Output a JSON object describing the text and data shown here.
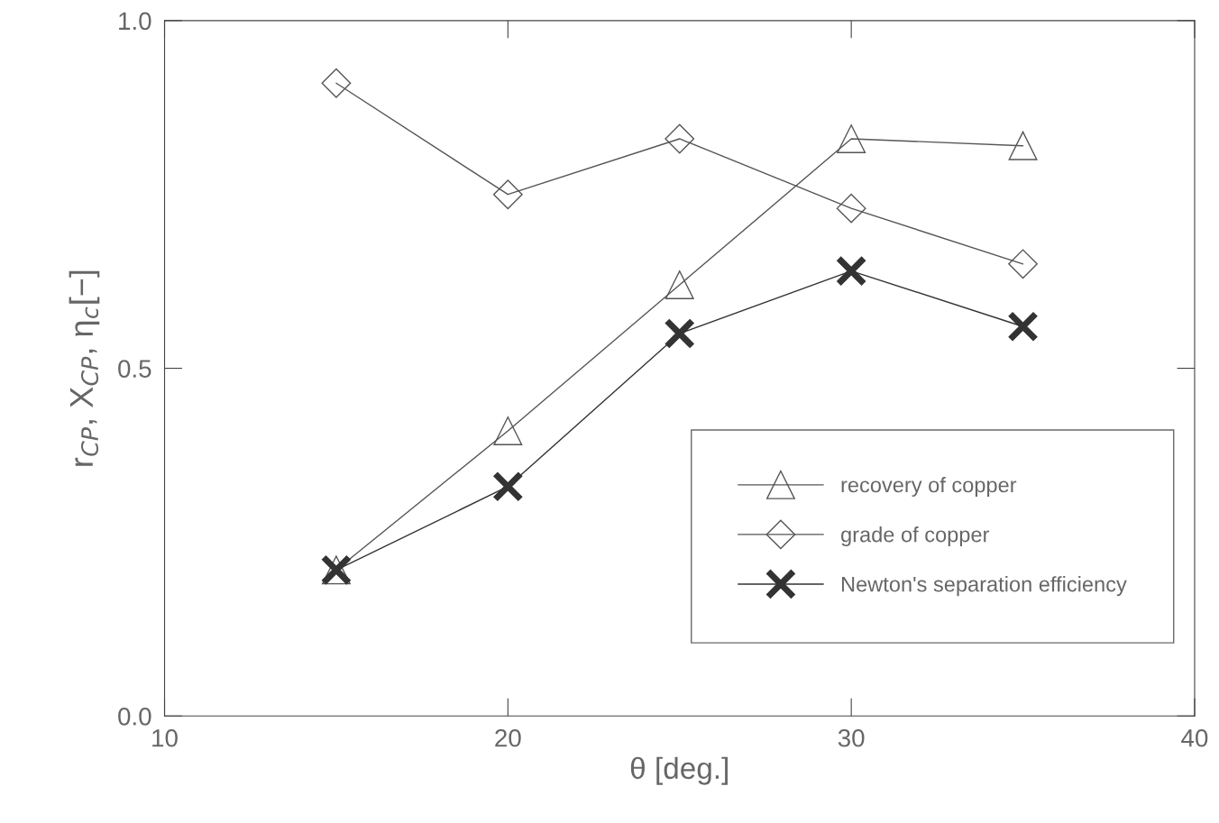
{
  "chart_data": {
    "type": "line",
    "xlabel": "θ [deg.]",
    "ylabel": "r$_{CP}$, X$_{CP}$, η$_{c}$[−]",
    "x": [
      15,
      20,
      25,
      30,
      35
    ],
    "series": [
      {
        "name": "recovery of copper",
        "color": "#555555",
        "marker": "triangle",
        "values": [
          0.21,
          0.41,
          0.62,
          0.83,
          0.82
        ]
      },
      {
        "name": "grade of copper",
        "color": "#555555",
        "marker": "diamond",
        "values": [
          0.91,
          0.75,
          0.83,
          0.73,
          0.65
        ]
      },
      {
        "name": "Newton's separation efficiency",
        "color": "#333333",
        "marker": "cross",
        "values": [
          0.21,
          0.33,
          0.55,
          0.64,
          0.56
        ]
      }
    ],
    "xlim": [
      10,
      40
    ],
    "xticks": [
      10,
      20,
      30,
      40
    ],
    "ylim": [
      0,
      1
    ],
    "yticks": [
      {
        "value": 0,
        "label": "0.0"
      },
      {
        "value": 0.5,
        "label": "0.5"
      },
      {
        "value": 1,
        "label": "1.0"
      }
    ],
    "grid": false,
    "legend": "bottom right",
    "line_style": "solid"
  }
}
